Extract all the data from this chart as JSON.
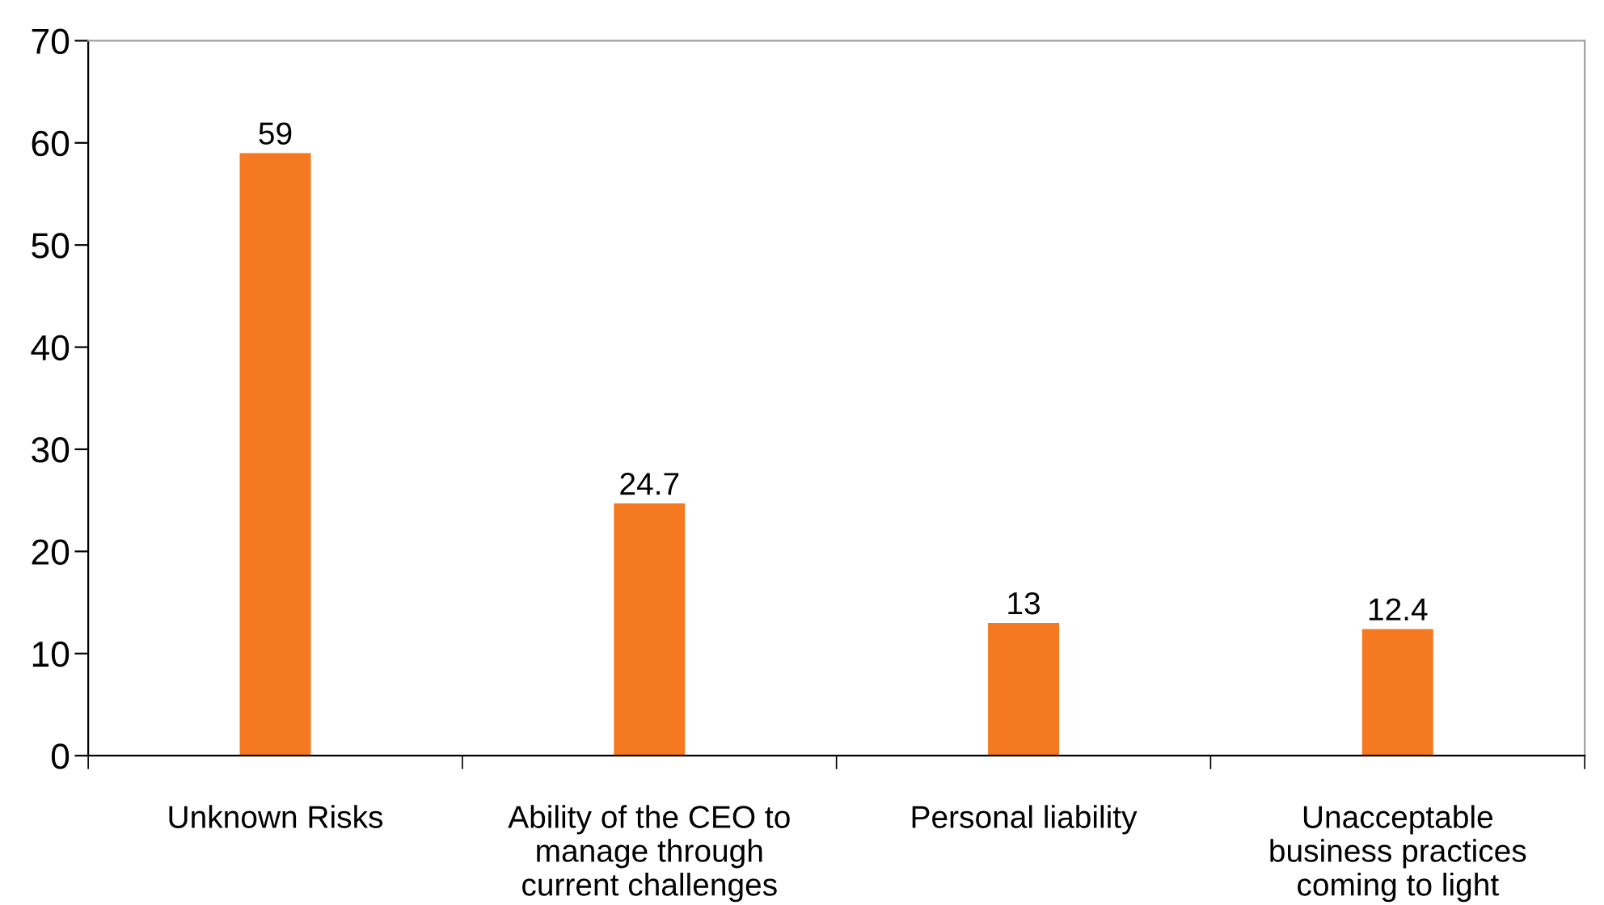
{
  "chart_data": {
    "type": "bar",
    "categories": [
      "Unknown Risks",
      "Ability of the CEO to\nmanage through\ncurrent challenges",
      "Personal liability",
      "Unacceptable\nbusiness practices\ncoming to light"
    ],
    "values": [
      59,
      24.7,
      13,
      12.4
    ],
    "color": "#f47920",
    "ylim": [
      0,
      70
    ],
    "yticks": [
      0,
      10,
      20,
      30,
      40,
      50,
      60,
      70
    ],
    "data_labels": true,
    "grid": false,
    "legend": false
  }
}
